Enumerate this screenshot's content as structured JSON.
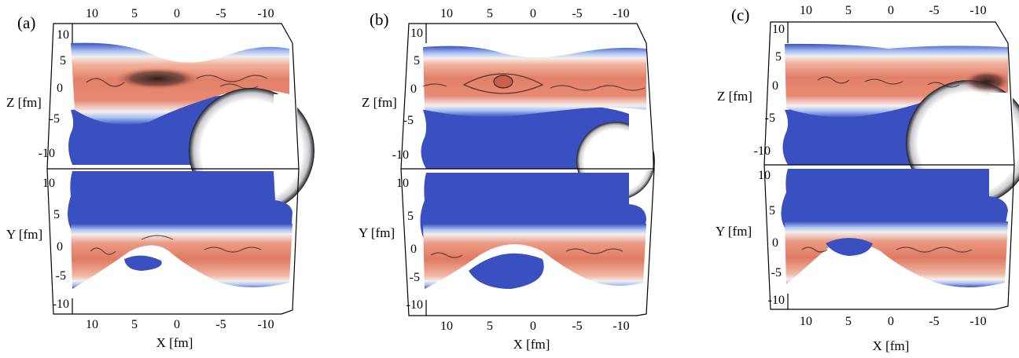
{
  "panels": [
    {
      "label": "(a)",
      "top_ticks": [
        "10",
        "5",
        "0",
        "-5",
        "-10"
      ],
      "z_label": "Z [fm]",
      "z_ticks": [
        "10",
        "5",
        "0",
        "-5",
        "-10"
      ],
      "y_label": "Y [fm]",
      "y_ticks": [
        "10",
        "5",
        "0",
        "-5",
        "-10"
      ],
      "x_label": "X [fm]",
      "bottom_ticks": [
        "10",
        "5",
        "0",
        "-5",
        "-10"
      ]
    },
    {
      "label": "(b)",
      "top_ticks": [
        "10",
        "5",
        "0",
        "-5",
        "-10"
      ],
      "z_label": "Z [fm]",
      "z_ticks": [
        "10",
        "5",
        "0",
        "-5",
        "-10"
      ],
      "y_label": "Y [fm]",
      "y_ticks": [
        "10",
        "5",
        "0",
        "-5",
        "-10"
      ],
      "x_label": "X [fm]",
      "bottom_ticks": [
        "10",
        "5",
        "0",
        "-5",
        "-10"
      ]
    },
    {
      "label": "(c)",
      "top_ticks": [
        "10",
        "5",
        "0",
        "-5",
        "-10"
      ],
      "z_label": "Z [fm]",
      "z_ticks": [
        "10",
        "5",
        "0",
        "-5",
        "-10"
      ],
      "y_label": "Y [fm]",
      "y_ticks": [
        "10",
        "5",
        "0",
        "-5",
        "-10"
      ],
      "x_label": "X [fm]",
      "bottom_ticks": [
        "10",
        "5",
        "0",
        "-5",
        "-10"
      ]
    }
  ],
  "colors": {
    "blue_region": "#3a50c0",
    "orange_band": "#e07a62",
    "band_edge": "#f6f1ef",
    "dark_shading": "#3a2420",
    "frame": "#000000"
  }
}
